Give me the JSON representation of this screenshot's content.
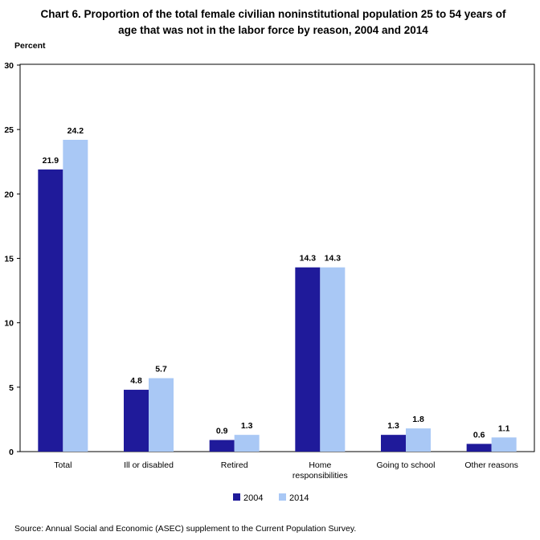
{
  "chart_data": {
    "type": "bar",
    "title": "Chart 6.  Proportion of the total female civilian noninstitutional population 25 to 54 years of age that was not in the labor force by reason, 2004 and 2014",
    "ylabel": "Percent",
    "ylim": [
      0,
      30
    ],
    "yticks": [
      0,
      5,
      10,
      15,
      20,
      25,
      30
    ],
    "categories": [
      "Total",
      "Ill or disabled",
      "Retired",
      "Home responsibilities",
      "Going to school",
      "Other reasons"
    ],
    "series": [
      {
        "name": "2004",
        "color": "#1f1a9a",
        "values": [
          21.9,
          4.8,
          0.9,
          14.3,
          1.3,
          0.6
        ]
      },
      {
        "name": "2014",
        "color": "#a9c8f5",
        "values": [
          24.2,
          5.7,
          1.3,
          14.3,
          1.8,
          1.1
        ]
      }
    ],
    "legend": "bottom-center",
    "grid": false
  },
  "source": "Source:  Annual Social and Economic (ASEC) supplement to the Current Population Survey."
}
